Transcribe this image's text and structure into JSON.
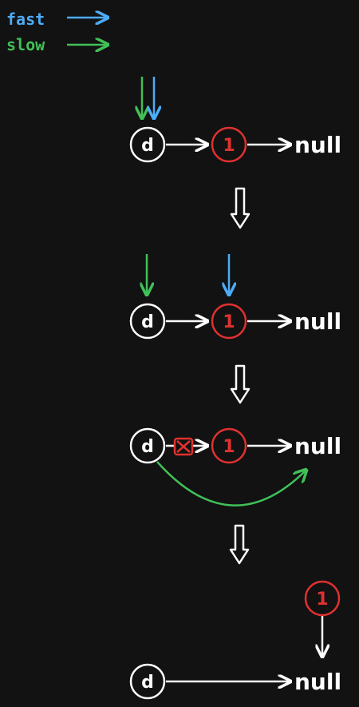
{
  "legend": {
    "fast_label": "fast",
    "slow_label": "slow"
  },
  "colors": {
    "background": "#121212",
    "white": "#ffffff",
    "red": "#e03131",
    "blue": "#4dabf7",
    "green": "#40c057"
  },
  "labels": {
    "dummy": "d",
    "one": "1",
    "null": "null"
  },
  "steps": [
    {
      "id": "step-1",
      "description": "fast and slow both at dummy"
    },
    {
      "id": "step-2",
      "description": "slow at dummy, fast at node 1"
    },
    {
      "id": "step-3",
      "description": "link from dummy to 1 removed, dummy points to null"
    },
    {
      "id": "step-4",
      "description": "node 1 removed, dummy points to null"
    }
  ]
}
